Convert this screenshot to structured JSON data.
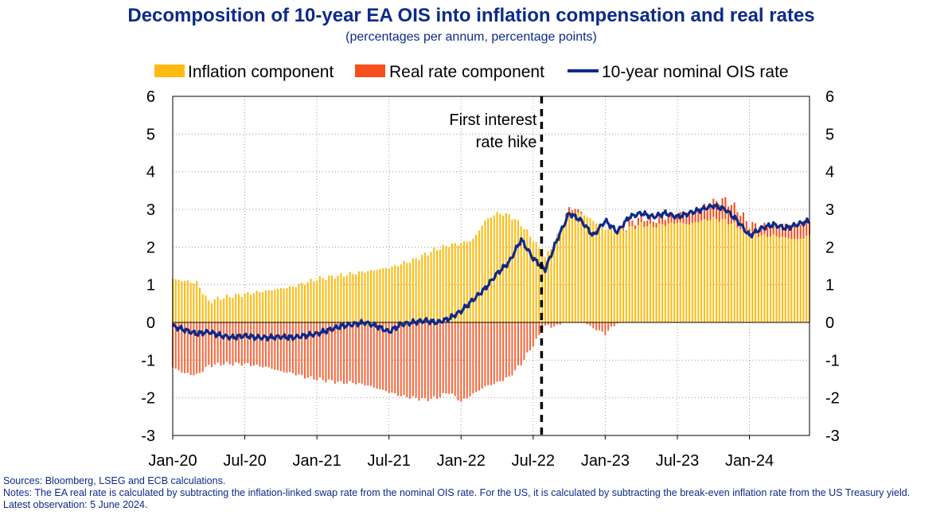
{
  "chart_data": {
    "type": "bar",
    "title": "Decomposition of 10-year EA OIS into inflation compensation and real rates",
    "subtitle": "(percentages per annum, percentage points)",
    "legend": {
      "placement": "top",
      "entries": [
        {
          "name": "Inflation component",
          "color": "#fdbb13"
        },
        {
          "name": "Real rate component",
          "color": "#f5501e"
        },
        {
          "name": "10-year nominal OIS rate",
          "color": "#0d2a8a"
        }
      ]
    },
    "ylim": [
      -3,
      6
    ],
    "yticks": [
      "6",
      "5",
      "4",
      "3",
      "2",
      "1",
      "0",
      "-1",
      "-2",
      "-3"
    ],
    "ytick_values": [
      6,
      5,
      4,
      3,
      2,
      1,
      0,
      -1,
      -2,
      -3
    ],
    "x_tick_labels": [
      "Jan-20",
      "Jul-20",
      "Jan-21",
      "Jul-21",
      "Jan-22",
      "Jul-22",
      "Jan-23",
      "Jul-23",
      "Jan-24"
    ],
    "x_range_months": [
      0,
      53
    ],
    "vertical_gridlines": true,
    "annotation": {
      "lines": [
        "First interest",
        "rate hike"
      ],
      "month": 30.7
    },
    "months": [
      0,
      1,
      2,
      3,
      4,
      5,
      6,
      7,
      8,
      9,
      10,
      11,
      12,
      13,
      14,
      15,
      16,
      17,
      18,
      19,
      20,
      21,
      22,
      23,
      24,
      25,
      26,
      27,
      28,
      29,
      30,
      31,
      32,
      33,
      34,
      35,
      36,
      37,
      38,
      39,
      40,
      41,
      42,
      43,
      44,
      45,
      46,
      47,
      48,
      49,
      50,
      51,
      52,
      53
    ],
    "series": [
      {
        "name": "Inflation component",
        "color": "#fdbb13",
        "values": [
          1.15,
          1.1,
          1.05,
          0.55,
          0.65,
          0.7,
          0.75,
          0.8,
          0.85,
          0.9,
          0.95,
          1.05,
          1.15,
          1.2,
          1.25,
          1.3,
          1.35,
          1.4,
          1.45,
          1.55,
          1.65,
          1.8,
          1.95,
          2.05,
          2.1,
          2.2,
          2.7,
          2.9,
          2.85,
          2.6,
          2.2,
          1.7,
          2.3,
          2.9,
          2.9,
          2.7,
          2.5,
          2.4,
          2.5,
          2.6,
          2.55,
          2.6,
          2.65,
          2.6,
          2.7,
          2.75,
          2.7,
          2.55,
          2.4,
          2.3,
          2.3,
          2.25,
          2.2,
          2.3
        ]
      },
      {
        "name": "Real rate component",
        "color": "#f5501e",
        "values": [
          -1.2,
          -1.35,
          -1.4,
          -1.15,
          -1.1,
          -1.1,
          -1.1,
          -1.15,
          -1.2,
          -1.3,
          -1.35,
          -1.45,
          -1.5,
          -1.55,
          -1.6,
          -1.6,
          -1.65,
          -1.75,
          -1.85,
          -1.95,
          -2.0,
          -2.05,
          -2.0,
          -1.85,
          -2.1,
          -1.9,
          -1.7,
          -1.6,
          -1.45,
          -1.1,
          -0.6,
          -0.1,
          -0.1,
          0.15,
          0.05,
          -0.15,
          -0.3,
          0.0,
          0.1,
          0.2,
          0.15,
          0.2,
          0.25,
          0.3,
          0.35,
          0.45,
          0.55,
          0.45,
          0.2,
          0.25,
          0.3,
          0.35,
          0.4,
          0.35
        ]
      },
      {
        "name": "10-year nominal OIS rate",
        "color": "#0d2a8a",
        "values": [
          -0.1,
          -0.2,
          -0.3,
          -0.25,
          -0.35,
          -0.4,
          -0.35,
          -0.4,
          -0.4,
          -0.38,
          -0.4,
          -0.35,
          -0.3,
          -0.2,
          -0.1,
          -0.05,
          0.0,
          -0.1,
          -0.25,
          -0.05,
          0.0,
          0.05,
          0.0,
          0.1,
          0.3,
          0.6,
          0.9,
          1.3,
          1.6,
          2.2,
          1.7,
          1.4,
          2.2,
          2.9,
          2.7,
          2.3,
          2.7,
          2.4,
          2.8,
          2.9,
          2.8,
          2.9,
          2.8,
          2.9,
          3.0,
          3.1,
          3.0,
          2.7,
          2.3,
          2.5,
          2.6,
          2.5,
          2.6,
          2.7
        ]
      }
    ]
  },
  "notes": {
    "sources": "Sources: Bloomberg, LSEG and ECB calculations.",
    "notes_text": "Notes: The EA real rate is calculated by subtracting the inflation-linked swap rate from the nominal OIS rate. For the US, it is calculated by subtracting the break-even inflation rate from the US Treasury yield.",
    "latest": "Latest observation: 5 June 2024."
  }
}
